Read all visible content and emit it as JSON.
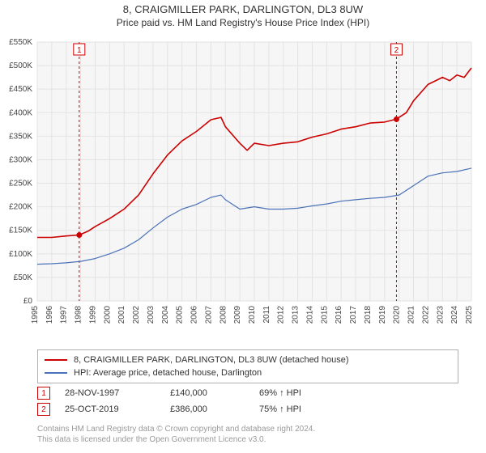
{
  "header": {
    "title": "8, CRAIGMILLER PARK, DARLINGTON, DL3 8UW",
    "subtitle": "Price paid vs. HM Land Registry's House Price Index (HPI)"
  },
  "chart": {
    "type": "line",
    "background_color": "#f6f6f6",
    "grid_color": "#e3e3e3",
    "axis_text_color": "#444444",
    "tick_fontsize": 10,
    "x": {
      "min": 1995,
      "max": 2025,
      "ticks": [
        1995,
        1996,
        1997,
        1998,
        1999,
        2000,
        2001,
        2002,
        2003,
        2004,
        2005,
        2006,
        2007,
        2008,
        2009,
        2010,
        2011,
        2012,
        2013,
        2014,
        2015,
        2016,
        2017,
        2018,
        2019,
        2020,
        2021,
        2022,
        2023,
        2024,
        2025
      ]
    },
    "y": {
      "min": 0,
      "max": 550000,
      "ticks": [
        0,
        50000,
        100000,
        150000,
        200000,
        250000,
        300000,
        350000,
        400000,
        450000,
        500000,
        550000
      ],
      "tick_labels": [
        "£0",
        "£50K",
        "£100K",
        "£150K",
        "£200K",
        "£250K",
        "£300K",
        "£350K",
        "£400K",
        "£450K",
        "£500K",
        "£550K"
      ]
    },
    "series": [
      {
        "name": "price_paid",
        "label": "8, CRAIGMILLER PARK, DARLINGTON, DL3 8UW (detached house)",
        "color": "#cc0000",
        "line_width": 1.6,
        "data": [
          [
            1995,
            135000
          ],
          [
            1996,
            135000
          ],
          [
            1997,
            138000
          ],
          [
            1997.9,
            140000
          ],
          [
            1998.5,
            148000
          ],
          [
            1999,
            158000
          ],
          [
            2000,
            175000
          ],
          [
            2001,
            195000
          ],
          [
            2002,
            225000
          ],
          [
            2003,
            270000
          ],
          [
            2004,
            310000
          ],
          [
            2005,
            340000
          ],
          [
            2006,
            360000
          ],
          [
            2007,
            385000
          ],
          [
            2007.7,
            390000
          ],
          [
            2008,
            370000
          ],
          [
            2009,
            335000
          ],
          [
            2009.5,
            320000
          ],
          [
            2010,
            335000
          ],
          [
            2011,
            330000
          ],
          [
            2012,
            335000
          ],
          [
            2013,
            338000
          ],
          [
            2014,
            348000
          ],
          [
            2015,
            355000
          ],
          [
            2016,
            365000
          ],
          [
            2017,
            370000
          ],
          [
            2018,
            378000
          ],
          [
            2019,
            380000
          ],
          [
            2019.8,
            386000
          ],
          [
            2020,
            390000
          ],
          [
            2020.5,
            400000
          ],
          [
            2021,
            425000
          ],
          [
            2022,
            460000
          ],
          [
            2023,
            475000
          ],
          [
            2023.5,
            468000
          ],
          [
            2024,
            480000
          ],
          [
            2024.5,
            475000
          ],
          [
            2025,
            495000
          ]
        ]
      },
      {
        "name": "hpi",
        "label": "HPI: Average price, detached house, Darlington",
        "color": "#4a72b8",
        "line_width": 1.2,
        "data": [
          [
            1995,
            78000
          ],
          [
            1996,
            79000
          ],
          [
            1997,
            81000
          ],
          [
            1998,
            84000
          ],
          [
            1999,
            90000
          ],
          [
            2000,
            100000
          ],
          [
            2001,
            112000
          ],
          [
            2002,
            130000
          ],
          [
            2003,
            155000
          ],
          [
            2004,
            178000
          ],
          [
            2005,
            195000
          ],
          [
            2006,
            205000
          ],
          [
            2007,
            220000
          ],
          [
            2007.7,
            225000
          ],
          [
            2008,
            215000
          ],
          [
            2009,
            195000
          ],
          [
            2010,
            200000
          ],
          [
            2011,
            195000
          ],
          [
            2012,
            195000
          ],
          [
            2013,
            197000
          ],
          [
            2014,
            202000
          ],
          [
            2015,
            206000
          ],
          [
            2016,
            212000
          ],
          [
            2017,
            215000
          ],
          [
            2018,
            218000
          ],
          [
            2019,
            220000
          ],
          [
            2020,
            225000
          ],
          [
            2021,
            245000
          ],
          [
            2022,
            265000
          ],
          [
            2023,
            272000
          ],
          [
            2024,
            275000
          ],
          [
            2025,
            282000
          ]
        ]
      }
    ],
    "sale_markers": [
      {
        "n": "1",
        "x": 1997.9,
        "y": 140000,
        "color": "#cc0000",
        "line_color": "#cc0000"
      },
      {
        "n": "2",
        "x": 2019.82,
        "y": 386000,
        "color": "#cc0000",
        "line_color": "#cc0000"
      }
    ],
    "marker_dot_radius": 3.5,
    "marker_dash": "3,3"
  },
  "legend": {
    "border_color": "#b0b0b0",
    "items": [
      {
        "color": "#cc0000",
        "label": "8, CRAIGMILLER PARK, DARLINGTON, DL3 8UW (detached house)"
      },
      {
        "color": "#4a72b8",
        "label": "HPI: Average price, detached house, Darlington"
      }
    ]
  },
  "sales": [
    {
      "n": "1",
      "badge_color": "#cc0000",
      "date": "28-NOV-1997",
      "price": "£140,000",
      "pct": "69% ↑ HPI"
    },
    {
      "n": "2",
      "badge_color": "#cc0000",
      "date": "25-OCT-2019",
      "price": "£386,000",
      "pct": "75% ↑ HPI"
    }
  ],
  "footnote": {
    "line1": "Contains HM Land Registry data © Crown copyright and database right 2024.",
    "line2": "This data is licensed under the Open Government Licence v3.0.",
    "color": "#9a9a9a"
  }
}
